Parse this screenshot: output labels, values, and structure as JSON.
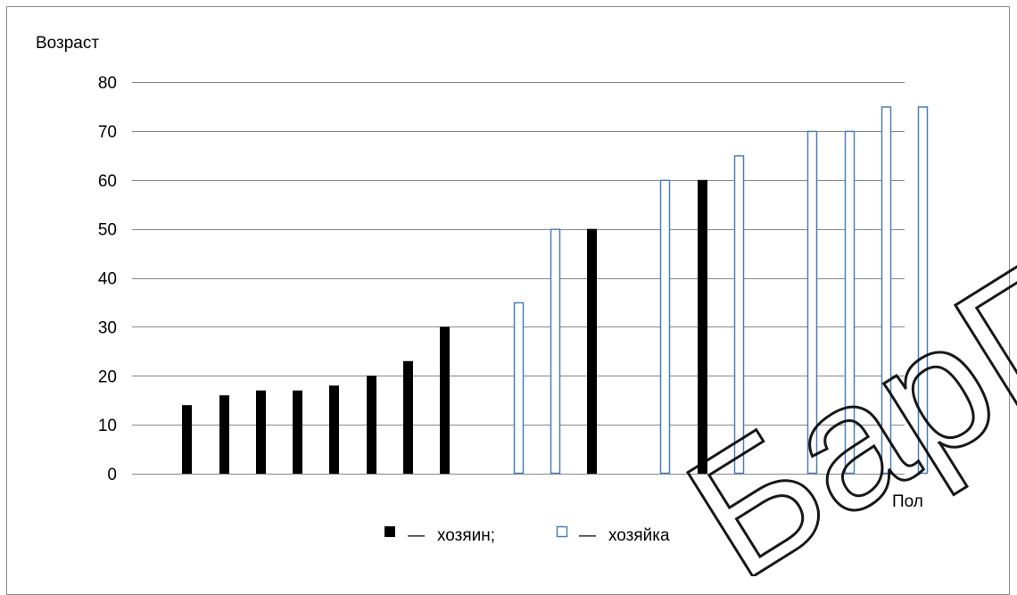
{
  "chart_data": {
    "type": "bar",
    "ylabel": "Возраст",
    "xlabel": "Пол",
    "ylim": [
      0,
      80
    ],
    "yticks": [
      0,
      10,
      20,
      30,
      40,
      50,
      60,
      70,
      80
    ],
    "grid": true,
    "legend_placement": "bottom-center",
    "legend": [
      {
        "name": "хозяин;",
        "style": "filled",
        "color": "#000000"
      },
      {
        "name": "хозяйка",
        "style": "outline",
        "color": "#4a7ebb"
      }
    ],
    "bars": [
      {
        "series": "хозяин",
        "value": 14
      },
      {
        "series": "хозяин",
        "value": 16
      },
      {
        "series": "хозяин",
        "value": 17
      },
      {
        "series": "хозяин",
        "value": 17
      },
      {
        "series": "хозяин",
        "value": 18
      },
      {
        "series": "хозяин",
        "value": 20
      },
      {
        "series": "хозяин",
        "value": 23
      },
      {
        "series": "хозяин",
        "value": 30
      },
      {
        "series": "хозяйка",
        "value": 35
      },
      {
        "series": "хозяйка",
        "value": 50
      },
      {
        "series": "хозяин",
        "value": 50
      },
      {
        "series": "хозяйка",
        "value": 60
      },
      {
        "series": "хозяин",
        "value": 60
      },
      {
        "series": "хозяйка",
        "value": 65
      },
      {
        "series": "хозяйка",
        "value": 70
      },
      {
        "series": "хозяйка",
        "value": 70
      },
      {
        "series": "хозяйка",
        "value": 75
      },
      {
        "series": "хозяйка",
        "value": 75
      }
    ]
  },
  "watermark": "БарГУ",
  "legend_dash": "—"
}
